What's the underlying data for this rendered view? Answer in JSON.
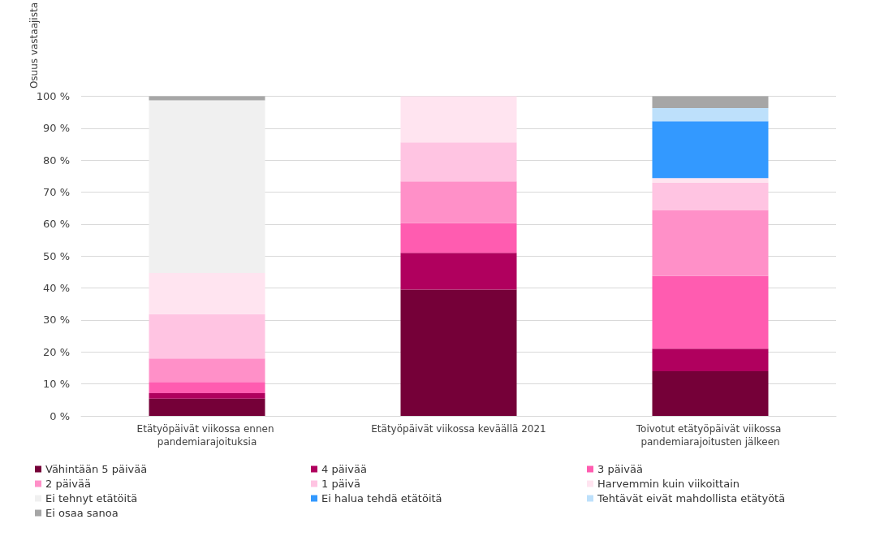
{
  "chart_data": {
    "type": "bar",
    "stacked": true,
    "ylabel": "Osuus vastaajista",
    "categories": [
      "Etätyöpäivät viikossa ennen pandemiarajoituksia",
      "Etätyöpäivät viikossa keväällä 2021",
      "Toivotut etätyöpäivät viikossa pandemiarajoitusten jälkeen"
    ],
    "series": [
      {
        "name": "Vähintään 5 päivää",
        "color": "#750038",
        "values": [
          5.4,
          39.5,
          14.0
        ]
      },
      {
        "name": "4 päivää",
        "color": "#b0005e",
        "values": [
          1.7,
          11.5,
          7.0
        ]
      },
      {
        "name": "3 päivää",
        "color": "#ff5cb0",
        "values": [
          3.5,
          9.3,
          22.8
        ]
      },
      {
        "name": "2 päivää",
        "color": "#ff90c8",
        "values": [
          7.4,
          13.1,
          20.6
        ]
      },
      {
        "name": "1 päivä",
        "color": "#ffc4e2",
        "values": [
          13.8,
          12.2,
          8.6
        ]
      },
      {
        "name": "Harvemmin kuin viikoittain",
        "color": "#ffe4f0",
        "values": [
          12.9,
          14.4,
          1.4
        ]
      },
      {
        "name": "Ei tehnyt etätöitä",
        "color": "#f0f0f0",
        "values": [
          54.0,
          0,
          0
        ]
      },
      {
        "name": "Ei halua tehdä etätöitä",
        "color": "#3399ff",
        "values": [
          0,
          0,
          17.8
        ]
      },
      {
        "name": "Tehtävät eivät mahdollista etätyötä",
        "color": "#bde0fb",
        "values": [
          0,
          0,
          4.1
        ]
      },
      {
        "name": "Ei osaa sanoa",
        "color": "#a6a6a6",
        "values": [
          1.3,
          0,
          3.7
        ]
      }
    ],
    "ylim": [
      0,
      100
    ],
    "yticks": [
      {
        "value": 0,
        "label": "0 %"
      },
      {
        "value": 10,
        "label": "10 %"
      },
      {
        "value": 20,
        "label": "20 %"
      },
      {
        "value": 30,
        "label": "30 %"
      },
      {
        "value": 40,
        "label": "40 %"
      },
      {
        "value": 50,
        "label": "50 %"
      },
      {
        "value": 60,
        "label": "60 %"
      },
      {
        "value": 70,
        "label": "70 %"
      },
      {
        "value": 80,
        "label": "80 %"
      },
      {
        "value": 90,
        "label": "90 %"
      },
      {
        "value": 100,
        "label": "100 %"
      }
    ],
    "grid": "y",
    "legend": "bottom"
  }
}
